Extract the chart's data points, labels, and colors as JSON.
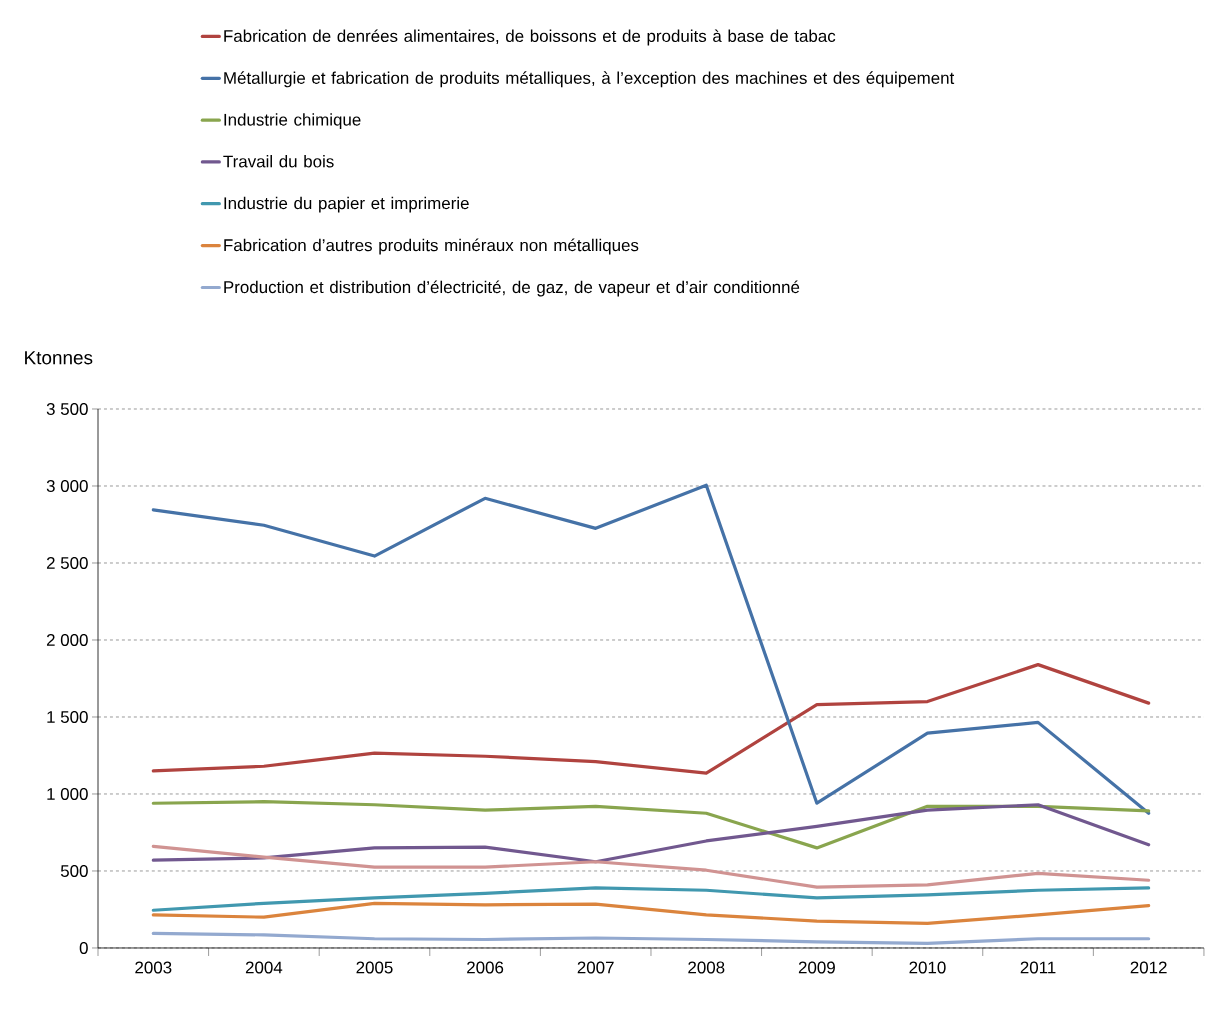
{
  "chart_data": {
    "type": "line",
    "ylabel": "Ktonnes",
    "categories": [
      "2003",
      "2004",
      "2005",
      "2006",
      "2007",
      "2008",
      "2009",
      "2010",
      "2011",
      "2012"
    ],
    "ylim": [
      0,
      3500
    ],
    "yticks": [
      0,
      500,
      {
        "value": 1000,
        "label": "1 000"
      },
      {
        "value": 1500,
        "label": "1 500"
      },
      {
        "value": 2000,
        "label": "2 000"
      },
      {
        "value": 2500,
        "label": "2 500"
      },
      {
        "value": 3000,
        "label": "3 000"
      },
      {
        "value": 3500,
        "label": "3 500"
      }
    ],
    "grid": "y",
    "legend": "top",
    "marker": "none",
    "line_style": "solid",
    "series": [
      {
        "name": "Fabrication de denrées alimentaires, de boissons et de produits à base de tabac",
        "color": "#b0433f",
        "values": [
          1150,
          1180,
          1265,
          1245,
          1210,
          1135,
          1580,
          1600,
          1840,
          1590
        ]
      },
      {
        "name": "Métallurgie et fabrication de produits métalliques, à l’exception des machines et des équipement",
        "color": "#4572a7",
        "values": [
          2845,
          2745,
          2545,
          2920,
          2725,
          3005,
          940,
          1395,
          1465,
          875
        ]
      },
      {
        "name": "Industrie chimique",
        "color": "#89a54e",
        "values": [
          940,
          950,
          930,
          895,
          920,
          875,
          650,
          920,
          920,
          890
        ]
      },
      {
        "name": "Travail du bois",
        "color": "#71588f",
        "values": [
          570,
          585,
          650,
          655,
          560,
          695,
          790,
          895,
          930,
          670
        ]
      },
      {
        "name": "Industrie du papier et imprimerie",
        "color": "#4198af",
        "values": [
          245,
          290,
          325,
          355,
          390,
          375,
          325,
          345,
          375,
          390
        ]
      },
      {
        "name": "Fabrication d’autres produits minéraux non métalliques",
        "color": "#db843d",
        "values": [
          215,
          200,
          290,
          280,
          285,
          215,
          175,
          160,
          215,
          275
        ]
      },
      {
        "name": "Production et distribution d’électricité, de gaz, de vapeur et d’air conditionné",
        "color": "#93a9cf",
        "values": [
          95,
          85,
          60,
          55,
          65,
          55,
          40,
          30,
          60,
          60
        ]
      },
      {
        "color": "#d09392",
        "values": [
          660,
          590,
          525,
          525,
          560,
          505,
          395,
          410,
          485,
          440
        ]
      }
    ]
  }
}
